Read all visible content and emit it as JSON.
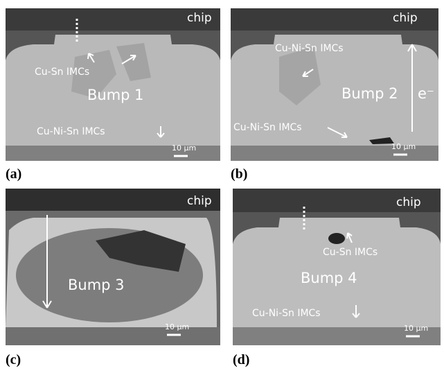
{
  "panels": [
    {
      "label": "(a)",
      "chip": "chip",
      "bump": "Bump 1",
      "notes": [
        "Cu-Sn IMCs",
        "Cu-Ni-Sn IMCs"
      ],
      "scale": "10 μm"
    },
    {
      "label": "(b)",
      "chip": "chip",
      "bump": "Bump 2",
      "notes": [
        "Cu-Ni-Sn IMCs",
        "Cu-Ni-Sn IMCs",
        "e⁻"
      ],
      "scale": "10 μm"
    },
    {
      "label": "(c)",
      "chip": "chip",
      "bump": "Bump 3",
      "notes": [],
      "scale": "10 μm"
    },
    {
      "label": "(d)",
      "chip": "chip",
      "bump": "Bump 4",
      "notes": [
        "Cu-Sn IMCs",
        "Cu-Ni-Sn IMCs"
      ],
      "scale": "10 μm"
    }
  ]
}
